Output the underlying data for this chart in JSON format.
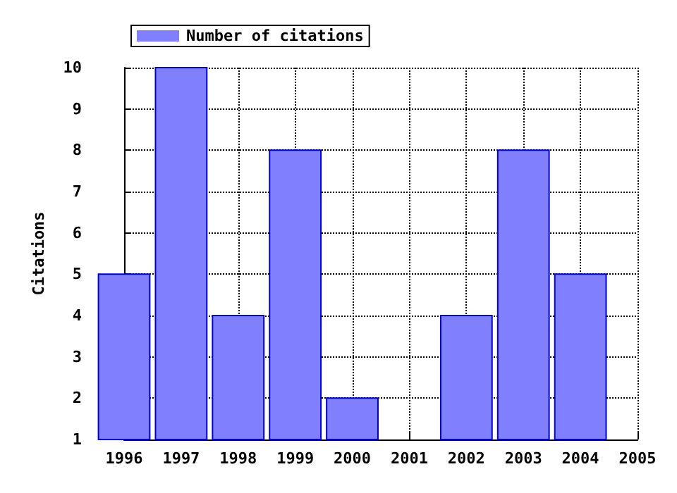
{
  "chart_data": {
    "type": "bar",
    "ylabel": "Citations",
    "x": [
      1996,
      1997,
      1998,
      1999,
      2000,
      2001,
      2002,
      2003,
      2004
    ],
    "series": [
      {
        "name": "Number of citations",
        "color": "#8080ff",
        "values": [
          5,
          10,
          4,
          8,
          2,
          null,
          4,
          8,
          5
        ]
      }
    ],
    "xlim": [
      1996,
      2005
    ],
    "xticks": [
      1996,
      1997,
      1998,
      1999,
      2000,
      2001,
      2002,
      2003,
      2004,
      2005
    ],
    "ylim": [
      1,
      10
    ],
    "yticks": [
      1,
      2,
      3,
      4,
      5,
      6,
      7,
      8,
      9,
      10
    ],
    "grid": true,
    "legend": "top left"
  }
}
